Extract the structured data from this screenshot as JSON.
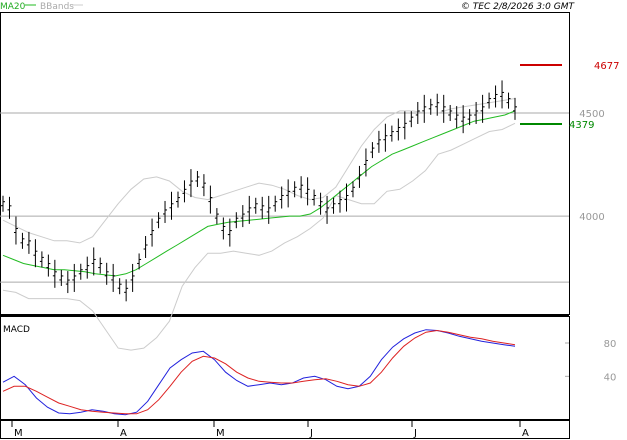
{
  "header": {
    "legend_ma": "MA20",
    "legend_bb": "BBands",
    "copyright": "© TEC 2/8/2026 3:0 GMT"
  },
  "colors": {
    "price": "#000000",
    "ma": "#22bb22",
    "bbands": "#cccccc",
    "resistance": "#cc0000",
    "support": "#008800",
    "macd": "#2222dd",
    "signal": "#dd2222",
    "grid": "#aaaaaa",
    "axis_text": "#999999"
  },
  "main_panel": {
    "resistance": {
      "value": 4677,
      "label": "4677"
    },
    "support": {
      "value": 4379,
      "label": "4379"
    }
  },
  "macd_panel": {
    "title": "MACD"
  },
  "chart_data": [
    {
      "type": "line",
      "title": "",
      "xlabel": "",
      "ylabel": "",
      "x_ticks": [
        "M",
        "A",
        "M",
        "J",
        "J",
        "A"
      ],
      "y_ticks": [
        4000,
        4500
      ],
      "ylim": [
        3530,
        4980
      ],
      "grid": true,
      "legend_position": "top-left",
      "series": [
        {
          "name": "price",
          "values": [
            4060,
            4040,
            3930,
            3880,
            3870,
            3820,
            3790,
            3760,
            3720,
            3700,
            3680,
            3700,
            3730,
            3750,
            3780,
            3760,
            3720,
            3700,
            3660,
            3640,
            3700,
            3780,
            3850,
            3920,
            3980,
            4020,
            4050,
            4080,
            4120,
            4160,
            4180,
            4150,
            4080,
            4000,
            3940,
            3920,
            3980,
            4000,
            4030,
            4050,
            4040,
            4030,
            4060,
            4090,
            4110,
            4130,
            4140,
            4120,
            4090,
            4060,
            4030,
            4050,
            4070,
            4090,
            4130,
            4190,
            4260,
            4320,
            4360,
            4380,
            4400,
            4420,
            4440,
            4470,
            4500,
            4520,
            4530,
            4540,
            4520,
            4500,
            4480,
            4470,
            4480,
            4500,
            4520,
            4560,
            4580,
            4590,
            4560,
            4520
          ]
        },
        {
          "name": "MA20",
          "values": [
            3810,
            3790,
            3770,
            3760,
            3750,
            3740,
            3740,
            3735,
            3730,
            3720,
            3715,
            3710,
            3720,
            3740,
            3770,
            3800,
            3830,
            3860,
            3890,
            3920,
            3950,
            3960,
            3970,
            3975,
            3980,
            3985,
            3990,
            3995,
            4000,
            4000,
            4010,
            4040,
            4080,
            4120,
            4160,
            4200,
            4240,
            4270,
            4300,
            4320,
            4340,
            4360,
            4380,
            4400,
            4420,
            4440,
            4460,
            4470,
            4480,
            4490,
            4510
          ]
        },
        {
          "name": "BBands",
          "values": [
            3980,
            3950,
            3920,
            3900,
            3880,
            3880,
            3870,
            3900,
            3980,
            4060,
            4130,
            4180,
            4190,
            4170,
            4120,
            4090,
            4080,
            4100,
            4120,
            4140,
            4160,
            4150,
            4130,
            4100,
            4080,
            4090,
            4140,
            4240,
            4340,
            4420,
            4480,
            4510,
            4510,
            4500,
            4500,
            4520,
            4530,
            4540,
            4550,
            4560,
            4570
          ]
        }
      ]
    },
    {
      "type": "line",
      "title": "MACD",
      "xlabel": "",
      "ylabel": "",
      "y_ticks": [
        40,
        80
      ],
      "ylim": [
        -10,
        110
      ],
      "grid": false,
      "series": [
        {
          "name": "MACD",
          "values": [
            33,
            40,
            30,
            14,
            3,
            -4,
            -5,
            -3,
            0,
            -2,
            -5,
            -6,
            -3,
            10,
            30,
            50,
            60,
            68,
            70,
            60,
            45,
            35,
            28,
            30,
            32,
            30,
            32,
            38,
            40,
            36,
            28,
            25,
            28,
            40,
            60,
            75,
            85,
            92,
            96,
            95,
            92,
            88,
            85,
            82,
            80,
            78,
            76
          ]
        },
        {
          "name": "Signal",
          "values": [
            22,
            28,
            28,
            22,
            15,
            8,
            4,
            0,
            -2,
            -3,
            -4,
            -5,
            -5,
            0,
            12,
            28,
            45,
            58,
            64,
            62,
            55,
            45,
            38,
            34,
            33,
            32,
            32,
            34,
            36,
            37,
            34,
            30,
            28,
            32,
            45,
            62,
            76,
            86,
            93,
            95,
            93,
            90,
            87,
            85,
            82,
            80,
            78
          ]
        }
      ]
    }
  ]
}
